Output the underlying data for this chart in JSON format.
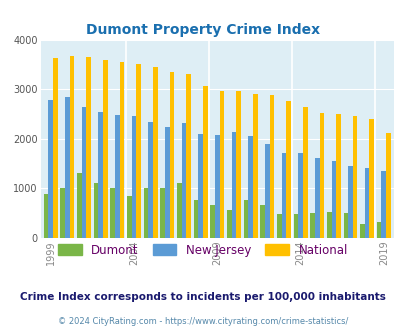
{
  "title": "Dumont Property Crime Index",
  "title_color": "#1a6faf",
  "years": [
    1999,
    2000,
    2001,
    2002,
    2003,
    2004,
    2005,
    2006,
    2007,
    2008,
    2009,
    2010,
    2011,
    2012,
    2013,
    2014,
    2015,
    2016,
    2017,
    2018,
    2019
  ],
  "dumont": [
    880,
    1000,
    1300,
    1110,
    1000,
    850,
    1000,
    1000,
    1100,
    750,
    650,
    550,
    750,
    650,
    480,
    480,
    490,
    520,
    490,
    280,
    320
  ],
  "new_jersey": [
    2780,
    2840,
    2640,
    2540,
    2470,
    2450,
    2340,
    2230,
    2310,
    2100,
    2080,
    2130,
    2060,
    1890,
    1710,
    1700,
    1600,
    1550,
    1440,
    1410,
    1340
  ],
  "national": [
    3620,
    3660,
    3640,
    3590,
    3540,
    3500,
    3440,
    3350,
    3310,
    3060,
    2970,
    2960,
    2900,
    2890,
    2750,
    2640,
    2510,
    2500,
    2460,
    2400,
    2110
  ],
  "dumont_color": "#7ab648",
  "nj_color": "#5b9bd5",
  "national_color": "#ffc000",
  "plot_bg": "#deeef5",
  "subtitle": "Crime Index corresponds to incidents per 100,000 inhabitants",
  "footer": "© 2024 CityRating.com - https://www.cityrating.com/crime-statistics/",
  "legend_labels": [
    "Dumont",
    "New Jersey",
    "National"
  ],
  "legend_label_color": "#660066",
  "subtitle_color": "#1a1a6e",
  "footer_color": "#5588aa",
  "ylim": [
    0,
    4000
  ],
  "yticks": [
    0,
    1000,
    2000,
    3000,
    4000
  ],
  "labeled_years": [
    1999,
    2004,
    2009,
    2014,
    2019
  ],
  "bar_width": 0.28,
  "title_fontsize": 10,
  "subtitle_fontsize": 7.5,
  "footer_fontsize": 6.0
}
